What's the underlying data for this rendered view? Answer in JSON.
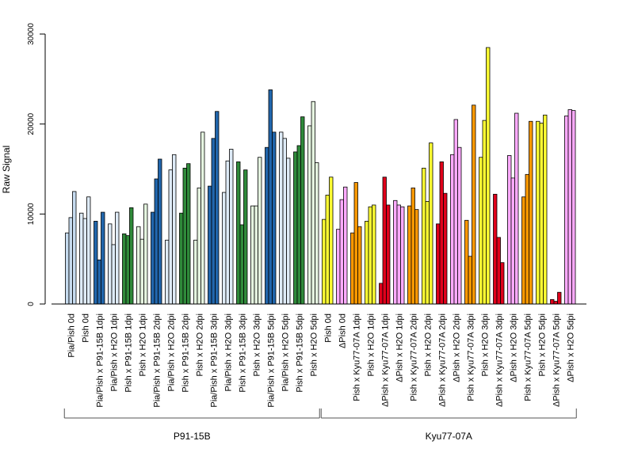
{
  "chart_data": {
    "type": "bar",
    "ylabel": "Raw Signal",
    "ylim": [
      0,
      30000
    ],
    "yticks": [
      0,
      10000,
      20000,
      30000
    ],
    "grid": false,
    "legend": "none",
    "categories": [
      {
        "label": "Pia/Pish 0d",
        "color": "#c6dbef",
        "values": [
          7900,
          9600,
          12500
        ]
      },
      {
        "label": "Pish 0d",
        "color": "#deebf7",
        "values": [
          10100,
          9500,
          11900
        ]
      },
      {
        "label": "Pia/Pish x P91-15B 1dpi",
        "color": "#2166ac",
        "values": [
          9200,
          4900,
          10200
        ]
      },
      {
        "label": "Pia/Pish x H2O 1dpi",
        "color": "#deebf7",
        "values": [
          8900,
          6600,
          10200
        ]
      },
      {
        "label": "Pish x P91-15B 1dpi",
        "color": "#2f8a3a",
        "values": [
          7800,
          7600,
          10700
        ]
      },
      {
        "label": "Pish x H2O 1dpi",
        "color": "#e5f5e0",
        "values": [
          8600,
          7200,
          11100
        ]
      },
      {
        "label": "Pia/Pish x P91-15B 2dpi",
        "color": "#2166ac",
        "values": [
          10200,
          13900,
          16100
        ]
      },
      {
        "label": "Pia/Pish x H2O 2dpi",
        "color": "#deebf7",
        "values": [
          7100,
          14900,
          16600
        ]
      },
      {
        "label": "Pish x P91-15B 2dpi",
        "color": "#2f8a3a",
        "values": [
          10100,
          15100,
          15600
        ]
      },
      {
        "label": "Pish x H2O 2dpi",
        "color": "#e5f5e0",
        "values": [
          7100,
          12900,
          19100
        ]
      },
      {
        "label": "Pia/Pish x P91-15B 3dpi",
        "color": "#2166ac",
        "values": [
          13100,
          18400,
          21400
        ]
      },
      {
        "label": "Pia/Pish x H2O 3dpi",
        "color": "#deebf7",
        "values": [
          12400,
          15900,
          17200
        ]
      },
      {
        "label": "Pish x P91-15B 3dpi",
        "color": "#2f8a3a",
        "values": [
          15800,
          8800,
          14900
        ]
      },
      {
        "label": "Pish x H2O 3dpi",
        "color": "#e5f5e0",
        "values": [
          10900,
          10900,
          16300
        ]
      },
      {
        "label": "Pia/Pish x P91-15B 5dpi",
        "color": "#2166ac",
        "values": [
          17400,
          23800,
          19100
        ]
      },
      {
        "label": "Pia/Pish x H2O 5dpi",
        "color": "#deebf7",
        "values": [
          19100,
          18400,
          16200
        ]
      },
      {
        "label": "Pish x P91-15B 5dpi",
        "color": "#2f8a3a",
        "values": [
          16900,
          17600,
          20800
        ]
      },
      {
        "label": "Pish x H2O 5dpi",
        "color": "#e5f5e0",
        "values": [
          19800,
          22500,
          15700
        ]
      },
      {
        "label": "Pish 0d",
        "color": "#ffff33",
        "values": [
          9400,
          12100,
          14100
        ]
      },
      {
        "label": "ΔPish 0d",
        "color": "#ffaaff",
        "values": [
          8300,
          11600,
          13000
        ]
      },
      {
        "label": "Pish x Kyu77-07A 1dpi",
        "color": "#ff9900",
        "values": [
          7900,
          13500,
          8600
        ]
      },
      {
        "label": "Pish x H2O 1dpi",
        "color": "#ffff33",
        "values": [
          9200,
          10800,
          11000
        ]
      },
      {
        "label": "ΔPish x Kyu77-07A 1dpi",
        "color": "#e0001b",
        "values": [
          2300,
          14100,
          11000
        ]
      },
      {
        "label": "ΔPish x H2O 1dpi",
        "color": "#ffaaff",
        "values": [
          11500,
          11000,
          10800
        ]
      },
      {
        "label": "Pish x Kyu77-07A 2dpi",
        "color": "#ff9900",
        "values": [
          10900,
          12900,
          10500
        ]
      },
      {
        "label": "Pish x H2O 2dpi",
        "color": "#ffff33",
        "values": [
          15100,
          11400,
          17900
        ]
      },
      {
        "label": "ΔPish x Kyu77-07A 2dpi",
        "color": "#e0001b",
        "values": [
          8900,
          15800,
          12300
        ]
      },
      {
        "label": "ΔPish x H2O 2dpi",
        "color": "#ffaaff",
        "values": [
          16600,
          20500,
          17400
        ]
      },
      {
        "label": "Pish x Kyu77-07A 3dpi",
        "color": "#ff9900",
        "values": [
          9300,
          5300,
          22100
        ]
      },
      {
        "label": "Pish x H2O 3dpi",
        "color": "#ffff33",
        "values": [
          16300,
          20400,
          28500
        ]
      },
      {
        "label": "ΔPish x Kyu77-07A 3dpi",
        "color": "#e0001b",
        "values": [
          12200,
          7400,
          4600
        ]
      },
      {
        "label": "ΔPish x H2O 3dpi",
        "color": "#ffaaff",
        "values": [
          16500,
          14000,
          21200
        ]
      },
      {
        "label": "Pish x Kyu77-07A 5dpi",
        "color": "#ff9900",
        "values": [
          11900,
          14400,
          20300
        ]
      },
      {
        "label": "Pish x H2O 5dpi",
        "color": "#ffff33",
        "values": [
          20300,
          20100,
          21000
        ]
      },
      {
        "label": "ΔPish x Kyu77-07A 5dpi",
        "color": "#e0001b",
        "values": [
          500,
          300,
          1300
        ]
      },
      {
        "label": "ΔPish x H2O 5dpi",
        "color": "#ffaaff",
        "values": [
          20900,
          21600,
          21500
        ]
      }
    ],
    "groups": [
      {
        "label": "P91-15B",
        "first": 0,
        "last": 17
      },
      {
        "label": "Kyu77-07A",
        "first": 18,
        "last": 35
      }
    ]
  }
}
